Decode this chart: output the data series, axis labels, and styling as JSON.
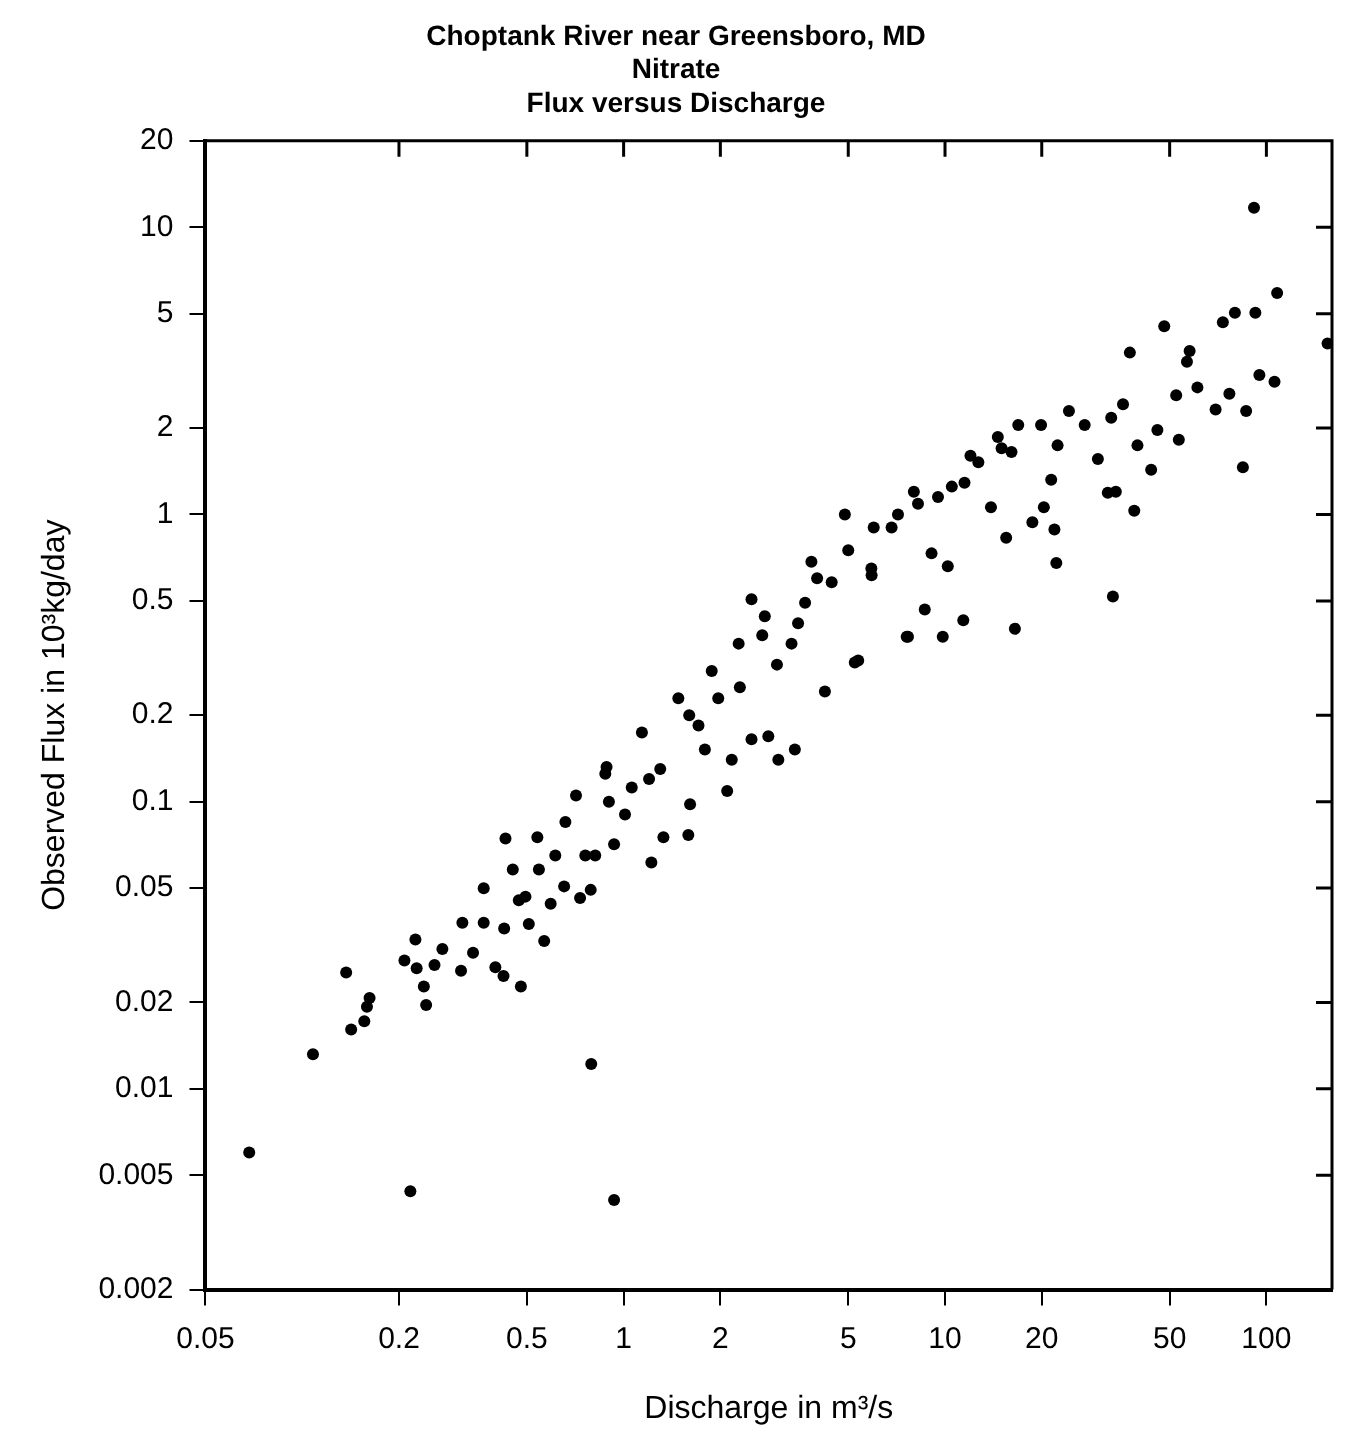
{
  "chart_data": {
    "type": "scatter",
    "title": "Choptank River near Greensboro, MD\nNitrate\nFlux versus Discharge",
    "xlabel": "Discharge in m³/s",
    "ylabel": "Observed Flux in 10³kg/day",
    "log": "xy",
    "marker": "circle",
    "legend": false,
    "grid": false,
    "xlim": [
      0.05,
      160
    ],
    "xticks": [
      0.05,
      0.2,
      0.5,
      1,
      2,
      5,
      10,
      20,
      50,
      100
    ],
    "ylim": [
      0.002,
      20
    ],
    "yticks": [
      0.002,
      0.005,
      0.01,
      0.02,
      0.05,
      0.1,
      0.2,
      0.5,
      1,
      2,
      5,
      10,
      20
    ],
    "series": [
      {
        "color": "#000000",
        "x": [
          0.0684,
          0.108,
          0.137,
          0.142,
          0.156,
          0.159,
          0.162,
          0.217,
          0.208,
          0.225,
          0.227,
          0.239,
          0.243,
          0.258,
          0.273,
          0.312,
          0.315,
          0.34,
          0.367,
          0.367,
          0.399,
          0.423,
          0.425,
          0.429,
          0.452,
          0.479,
          0.472,
          0.507,
          0.539,
          0.566,
          0.593,
          0.613,
          0.653,
          0.711,
          0.732,
          0.79,
          0.793,
          0.816,
          0.885,
          0.934,
          0.934,
          1.01,
          1.22,
          1.33,
          1.59,
          1.61,
          1.79,
          0.545,
          0.659,
          0.877,
          1.14,
          1.48,
          1.88,
          2.1,
          2.17,
          2.5,
          2.82,
          3.03,
          3.41,
          2.5,
          2.28,
          2.75,
          3.33,
          3.67,
          3.84,
          4.44,
          4.88,
          4.23,
          5.24,
          5.91,
          7.14,
          7.67,
          8.65,
          8.24,
          3.49,
          1.97,
          1.71,
          1.06,
          0.76,
          0.495,
          91.5,
          108,
          155,
          92.4,
          79.8,
          73.2,
          48.1,
          37.6,
          57.7,
          56.6,
          61,
          52.4,
          76.7,
          95.1,
          106,
          86.5,
          69.5,
          53.4,
          84.5,
          45.8,
          43.8,
          39.7,
          35.8,
          32.9,
          29.9,
          32.1,
          34,
          38.8,
          33.3,
          24.3,
          27.2,
          22.4,
          19.9,
          16.9,
          16.1,
          14.6,
          21.4,
          21.9,
          22.2,
          20.3,
          18.7,
          16.5,
          15.5,
          13.9,
          12.7,
          11.5,
          10.5,
          9.51,
          10.2,
          9.08,
          11.4,
          9.84,
          7.6,
          6.82,
          5.9,
          5.37,
          1.3,
          2.3,
          3,
          4,
          5,
          6,
          8,
          12,
          15,
          2.7,
          1.6,
          0.9,
          1.2
        ],
        "values": [
          0.006,
          0.0132,
          0.0254,
          0.0161,
          0.0172,
          0.0193,
          0.0207,
          0.0044,
          0.028,
          0.0331,
          0.0263,
          0.0227,
          0.0196,
          0.027,
          0.0307,
          0.0258,
          0.0379,
          0.0298,
          0.0379,
          0.0499,
          0.0265,
          0.0247,
          0.0362,
          0.0744,
          0.0581,
          0.0227,
          0.0454,
          0.0375,
          0.0752,
          0.0327,
          0.0441,
          0.0649,
          0.0507,
          0.105,
          0.0462,
          0.0493,
          0.0122,
          0.0649,
          0.132,
          0.0711,
          0.0041,
          0.0902,
          0.0614,
          0.0752,
          0.0765,
          0.098,
          0.152,
          0.058,
          0.085,
          0.125,
          0.174,
          0.229,
          0.285,
          0.109,
          0.14,
          0.165,
          0.169,
          0.14,
          0.152,
          0.507,
          0.355,
          0.442,
          0.355,
          0.493,
          0.685,
          0.581,
          1.0,
          0.242,
          0.305,
          0.614,
          1.0,
          0.375,
          0.467,
          1.09,
          0.418,
          0.229,
          0.184,
          0.112,
          0.0649,
          0.0467,
          11.7,
          5.9,
          3.94,
          5.04,
          5.04,
          4.67,
          4.52,
          3.66,
          3.71,
          3.4,
          2.77,
          2.6,
          2.63,
          3.06,
          2.9,
          2.29,
          2.32,
          1.82,
          1.46,
          1.97,
          1.43,
          1.74,
          2.42,
          2.17,
          1.56,
          1.19,
          1.2,
          1.03,
          0.518,
          2.29,
          2.05,
          1.74,
          2.05,
          2.05,
          1.65,
          1.86,
          1.32,
          0.887,
          0.677,
          1.06,
          0.94,
          0.4,
          0.83,
          1.06,
          1.52,
          1.29,
          1.25,
          1.15,
          0.66,
          0.732,
          0.428,
          0.375,
          0.375,
          0.901,
          0.649,
          0.31,
          0.13,
          0.25,
          0.3,
          0.6,
          0.75,
          0.9,
          1.2,
          1.6,
          1.7,
          0.38,
          0.2,
          0.1,
          0.12
        ]
      }
    ]
  }
}
